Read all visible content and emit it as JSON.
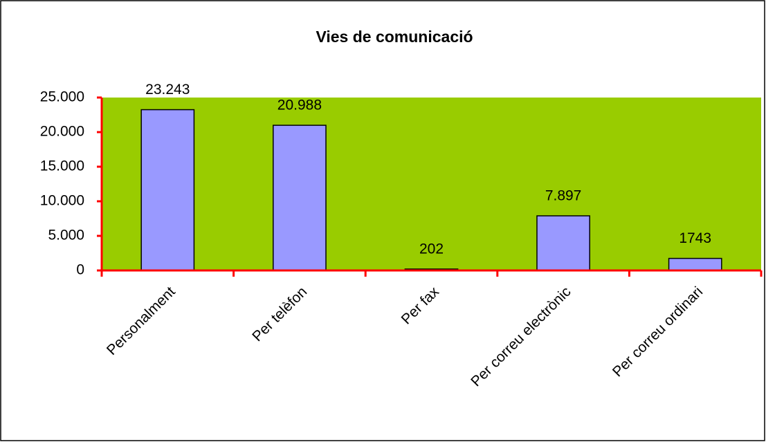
{
  "chart_data": {
    "type": "bar",
    "title": "Vies de comunicació",
    "categories": [
      "Personalment",
      "Per telèfon",
      "Per fax",
      "Per correu electrònic",
      "Per correu ordinari"
    ],
    "values": [
      23243,
      20988,
      202,
      7897,
      1743
    ],
    "value_labels": [
      "23.243",
      "20.988",
      "202",
      "7.897",
      "1743"
    ],
    "color": "#9999ff",
    "plot_background": "#99cc00",
    "axis_color": "#ff0000",
    "ylim": [
      0,
      25000
    ],
    "yticks": [
      0,
      {
        "value": 5000,
        "label": "5.000"
      },
      {
        "value": 10000,
        "label": "10.000"
      },
      {
        "value": 15000,
        "label": "15.000"
      },
      {
        "value": 20000,
        "label": "20.000"
      },
      {
        "value": 25000,
        "label": "25.000"
      }
    ],
    "grid": false
  }
}
